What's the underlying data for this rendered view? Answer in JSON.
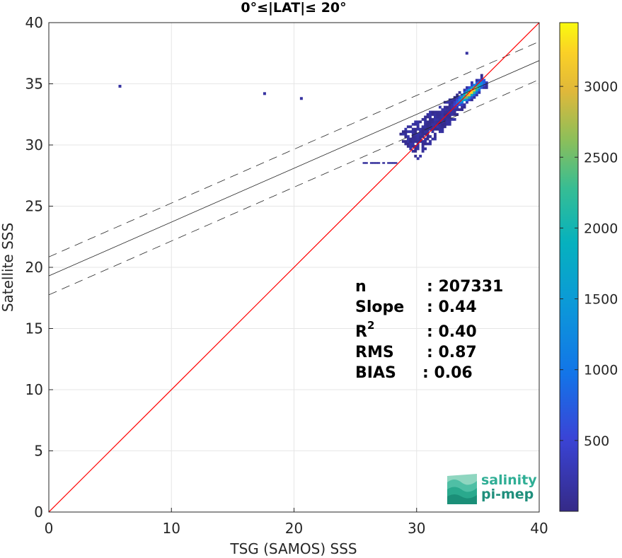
{
  "chart_data": {
    "type": "heatmap",
    "title": "0°≤|LAT|≤ 20°",
    "xlabel": "TSG (SAMOS) SSS",
    "ylabel": "Satellite SSS",
    "xlim": [
      0,
      40
    ],
    "ylim": [
      0,
      40
    ],
    "x_ticks": [
      "0",
      "10",
      "20",
      "30",
      "40"
    ],
    "y_ticks": [
      "0",
      "5",
      "10",
      "15",
      "20",
      "25",
      "30",
      "35",
      "40"
    ],
    "grid": true,
    "colorbar": {
      "range": [
        0,
        3450
      ],
      "ticks": [
        "500",
        "1000",
        "1500",
        "2000",
        "2500",
        "3000"
      ],
      "tick_values": [
        500,
        1000,
        1500,
        2000,
        2500,
        3000
      ]
    },
    "reference_line": {
      "name": "1:1",
      "slope": 1,
      "intercept": 0,
      "color": "#ff0000"
    },
    "regression_line": {
      "slope": 0.44,
      "intercept": 19.3,
      "band_offset": 1.55
    },
    "stats": [
      {
        "label": "n",
        "value": ": 207331"
      },
      {
        "label": "Slope",
        "value": ": 0.44"
      },
      {
        "label": "R",
        "sup": "2",
        "value": ": 0.40"
      },
      {
        "label": "RMS",
        "value": ": 0.87"
      },
      {
        "label": "BIAS",
        "value": ": 0.06"
      }
    ],
    "density_core": {
      "center_x": 34.3,
      "center_y": 34.2,
      "peak_count": 3400
    },
    "outliers": [
      {
        "x": 5.8,
        "y": 34.8
      },
      {
        "x": 17.6,
        "y": 34.2
      },
      {
        "x": 20.6,
        "y": 33.8
      },
      {
        "x": 34.1,
        "y": 37.5
      }
    ],
    "logo": {
      "line1": "salinity",
      "line2": "pi-mep"
    }
  }
}
